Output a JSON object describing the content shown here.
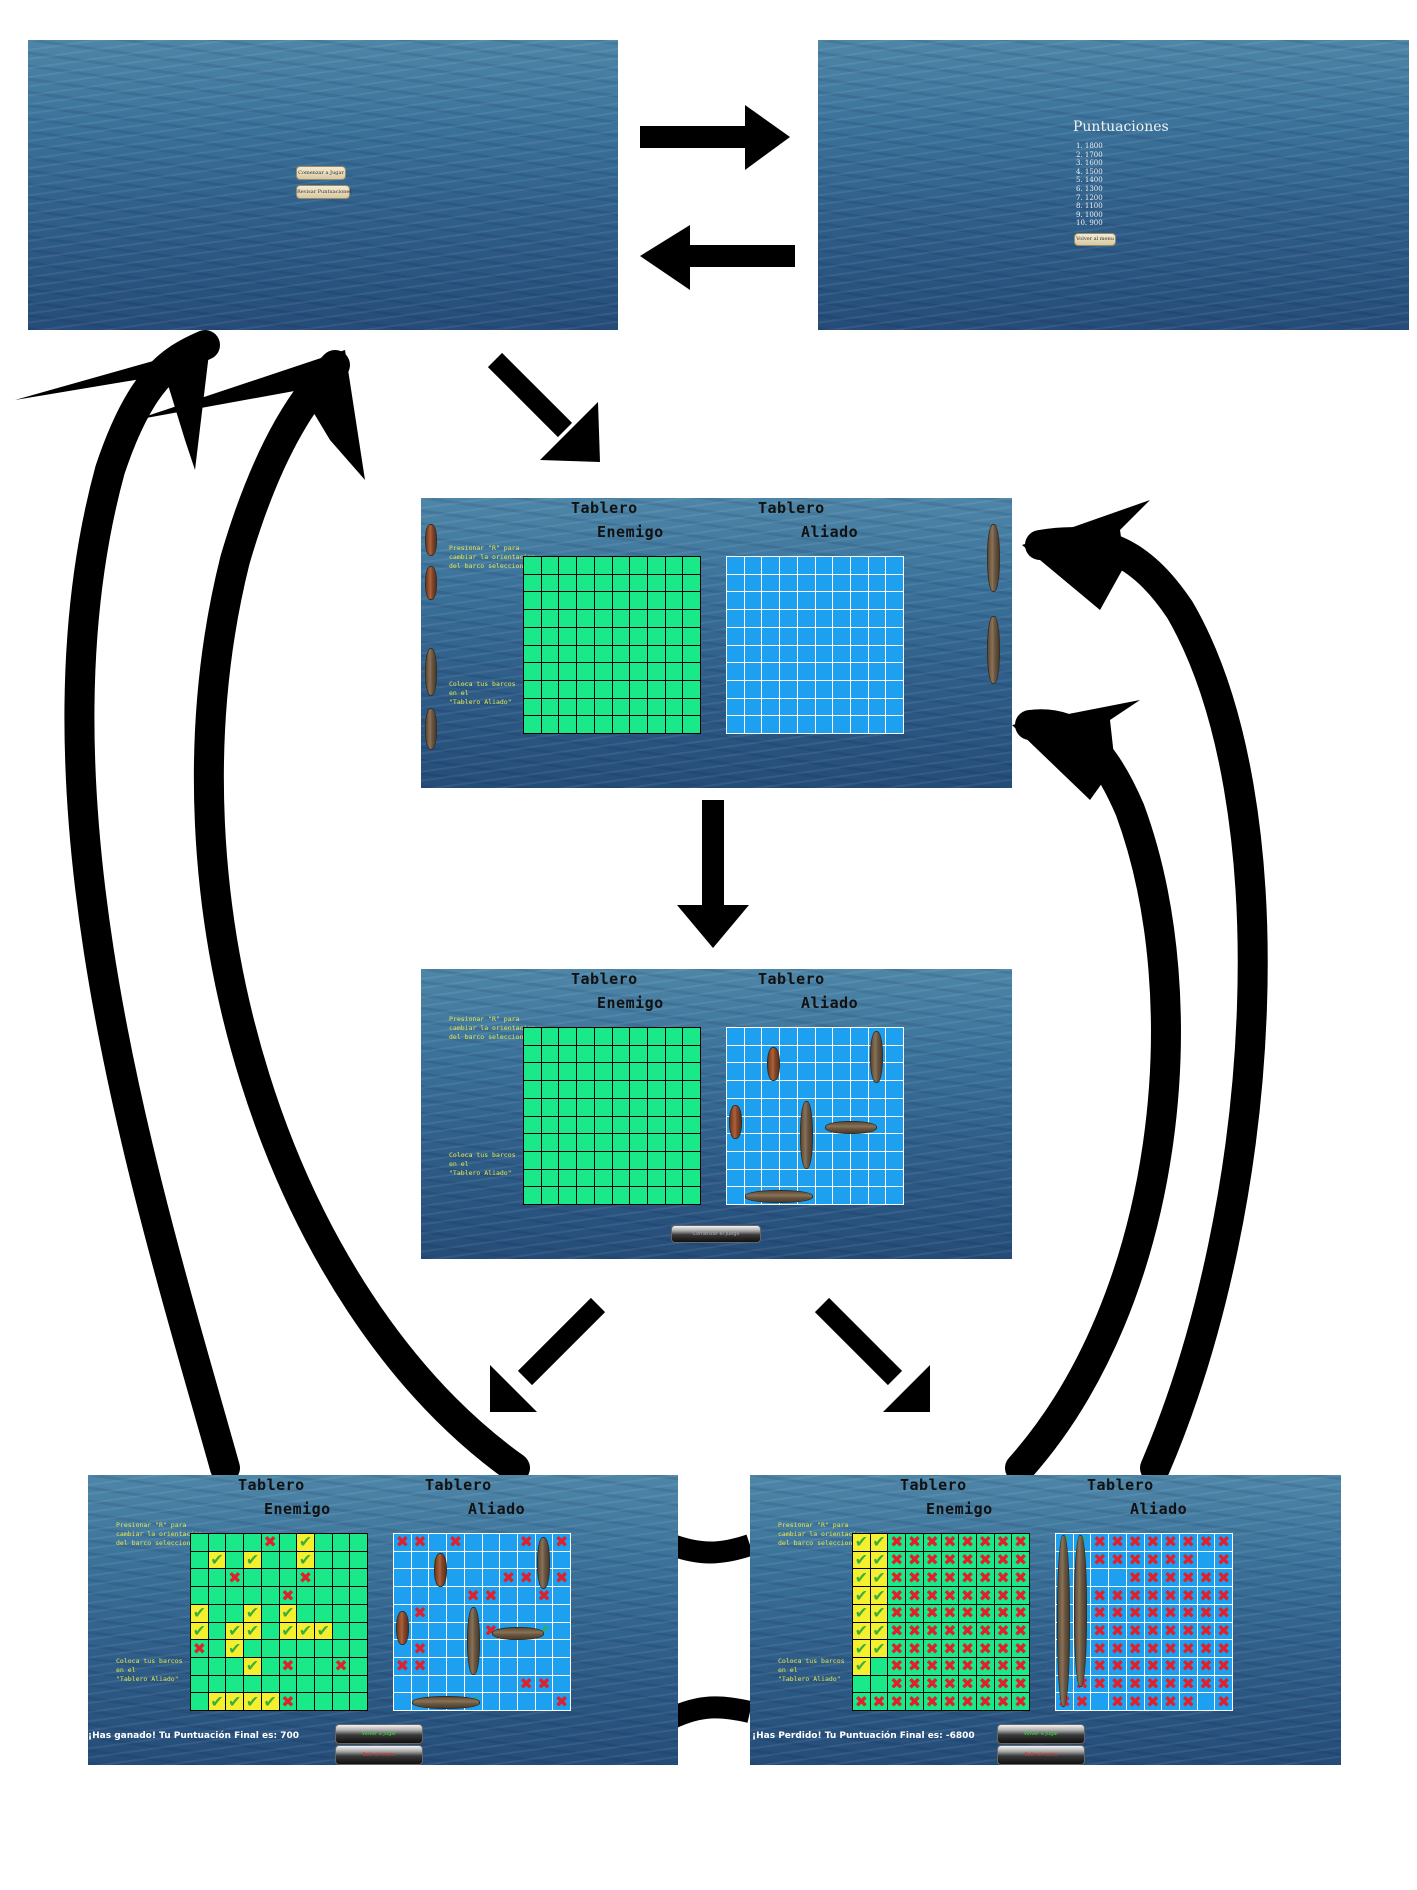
{
  "menu": {
    "start_button": "Comenzar a Jugar",
    "scores_button": "Revisar Puntuaciones"
  },
  "scores": {
    "title": "Puntuaciones",
    "entries": [
      "1. 1800",
      "2. 1700",
      "3. 1600",
      "4. 1500",
      "5. 1400",
      "6. 1300",
      "7. 1200",
      "8. 1100",
      "9. 1000",
      "10. 900"
    ],
    "back_button": "Volver al menu"
  },
  "board": {
    "enemy_title_1": "Tablero",
    "enemy_title_2": "Enemigo",
    "ally_title_1": "Tablero",
    "ally_title_2": "Aliado",
    "hint_rotate": "Presionar \"R\" para\ncambiar la orientacion\ndel barco seleccionado",
    "hint_place": "Coloca tus barcos\nen el\n\"Tablero Aliado\"",
    "start_game_button": "Comenzar el Juego"
  },
  "end": {
    "win_text": "¡Has ganado! Tu Puntuación Final es: 700",
    "lose_text": "¡Has Perdido! Tu Puntuación Final es: -6800",
    "replay_button": "Volver a Jugar",
    "exit_button": "Salir al menu"
  },
  "colors": {
    "enemy_grid": "#19e989",
    "ally_grid": "#1da0f0",
    "hit_mark": "#3cae3c",
    "miss_mark": "#e0202a",
    "hint_text": "#e8e74a"
  }
}
